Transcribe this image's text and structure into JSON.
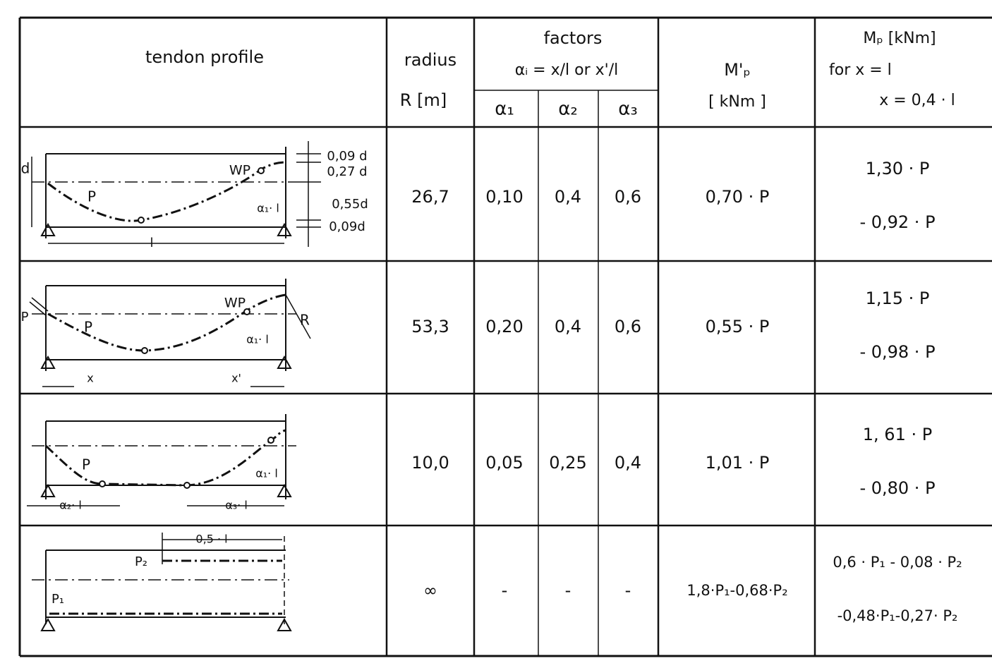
{
  "table": {
    "header": {
      "tendon_profile": "tendon profile",
      "radius": "radius",
      "radius_unit": "R [m]",
      "factors": "factors",
      "factors_def": "αᵢ = x/l  or   x'/l",
      "alphas": [
        "α₁",
        "α₂",
        "α₃"
      ],
      "mp_prime": "M'ₚ",
      "mp_prime_unit": "[ kNm ]",
      "mp": "Mₚ  [kNm]",
      "mp_for": "for   x  =    l",
      "mp_for2": "x = 0,4 · l"
    },
    "rows": [
      {
        "profile_labels": [
          "d",
          "P",
          "WP",
          "0,09 d",
          "0,27 d",
          "0,55d",
          "0,09d",
          "l",
          "α₁· l"
        ],
        "radius": "26,7",
        "alpha": [
          "0,10",
          "0,4",
          "0,6"
        ],
        "mp_prime": "0,70  · P",
        "mp": [
          "1,30  ·  P",
          "- 0,92  ·  P"
        ]
      },
      {
        "profile_labels": [
          "P",
          "P",
          "WP",
          "R",
          "α₁· l",
          "x",
          "x'"
        ],
        "radius": "53,3",
        "alpha": [
          "0,20",
          "0,4",
          "0,6"
        ],
        "mp_prime": "0,55  · P",
        "mp": [
          "1,15  · P",
          "- 0,98  · P"
        ]
      },
      {
        "profile_labels": [
          "P",
          "α₁· l",
          "α₂· l",
          "α₃· l"
        ],
        "radius": "10,0",
        "alpha": [
          "0,05",
          "0,25",
          "0,4"
        ],
        "mp_prime": "1,01  · P",
        "mp": [
          "1, 61  · P",
          "- 0,80 · P"
        ]
      },
      {
        "profile_labels": [
          "0,5 · l",
          "P₂",
          "P₁"
        ],
        "radius": "∞",
        "alpha": [
          "-",
          "-",
          "-"
        ],
        "mp_prime": "1,8·P₁-0,68·P₂",
        "mp": [
          "0,6 · P₁ - 0,08 · P₂",
          "-0,48·P₁-0,27· P₂"
        ]
      }
    ]
  }
}
